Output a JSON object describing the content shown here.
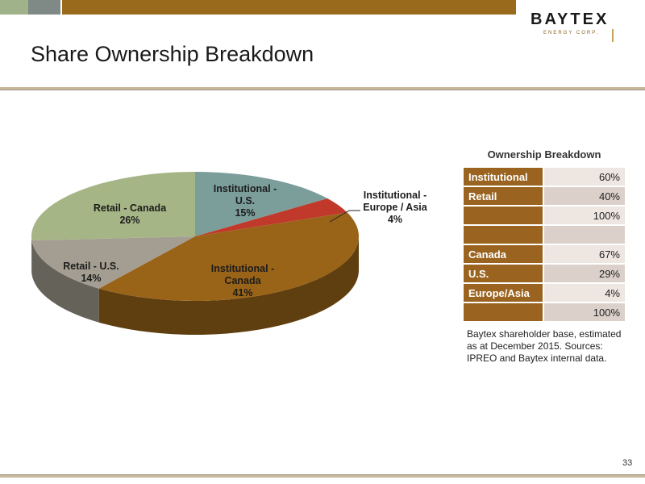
{
  "header": {
    "logo_main": "BAYTEX",
    "logo_sub": "ENERGY CORP.",
    "title": "Share Ownership Breakdown"
  },
  "colors": {
    "institutional_us": "#7b9e9b",
    "institutional_europe_asia": "#c0392b",
    "institutional_canada": "#9a6418",
    "retail_us": "#a39e91",
    "retail_canada": "#a6b585",
    "table_key": "#9a6420"
  },
  "chart_data": {
    "type": "pie",
    "title": "",
    "slices": [
      {
        "name": "Institutional - U.S.",
        "value": 15,
        "label_lines": [
          "Institutional -",
          "U.S.",
          "15%"
        ],
        "color": "#7b9e9b"
      },
      {
        "name": "Institutional - Europe / Asia",
        "value": 4,
        "label_lines": [
          "Institutional -",
          "Europe / Asia",
          "4%"
        ],
        "color": "#c0392b"
      },
      {
        "name": "Institutional - Canada",
        "value": 41,
        "label_lines": [
          "Institutional -",
          "Canada",
          "41%"
        ],
        "color": "#9a6418"
      },
      {
        "name": "Retail - U.S.",
        "value": 14,
        "label_lines": [
          "Retail - U.S.",
          "14%"
        ],
        "color": "#a39e91"
      },
      {
        "name": "Retail - Canada",
        "value": 26,
        "label_lines": [
          "Retail - Canada",
          "26%"
        ],
        "color": "#a6b585"
      }
    ]
  },
  "table": {
    "title": "Ownership Breakdown",
    "rows": [
      {
        "label": "Institutional",
        "value": "60%"
      },
      {
        "label": "Retail",
        "value": "40%"
      },
      {
        "label": "",
        "value": "100%"
      },
      {
        "label": "",
        "value": ""
      },
      {
        "label": "Canada",
        "value": "67%"
      },
      {
        "label": "U.S.",
        "value": "29%"
      },
      {
        "label": "Europe/Asia",
        "value": "4%"
      },
      {
        "label": "",
        "value": "100%"
      }
    ]
  },
  "note": "Baytex shareholder base, estimated as at December 2015. Sources: IPREO and Baytex internal data.",
  "footer": {
    "page_number": "33"
  }
}
